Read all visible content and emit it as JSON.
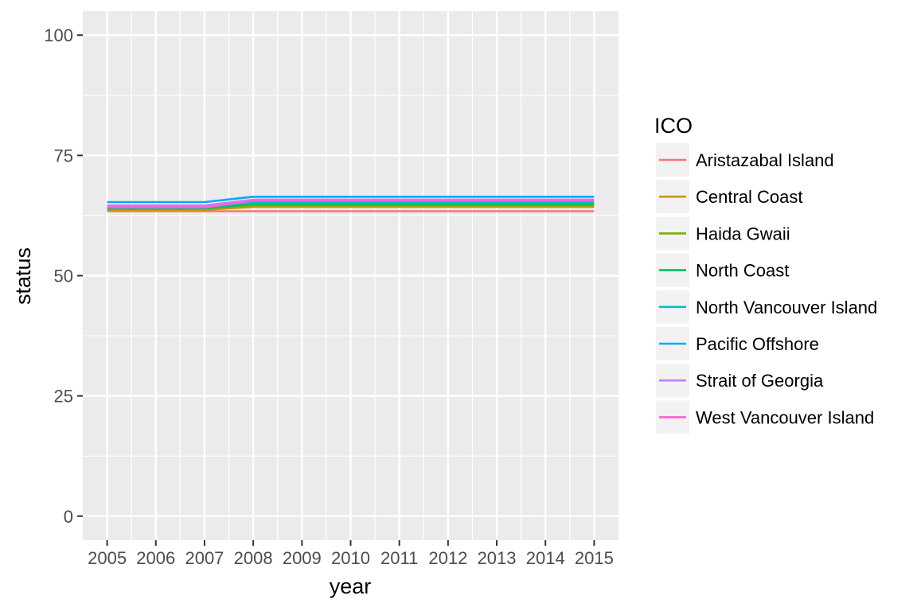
{
  "chart_data": {
    "type": "line",
    "x": [
      2005,
      2006,
      2007,
      2008,
      2009,
      2010,
      2011,
      2012,
      2013,
      2014,
      2015
    ],
    "xlabel": "year",
    "ylabel": "status",
    "ylim": [
      -5,
      105
    ],
    "yticks": [
      0,
      25,
      50,
      75,
      100
    ],
    "ytick_labels": [
      "0",
      "25",
      "50",
      "75",
      "100"
    ],
    "xtick_labels": [
      "2005",
      "2006",
      "2007",
      "2008",
      "2009",
      "2010",
      "2011",
      "2012",
      "2013",
      "2014",
      "2015"
    ],
    "grid": true,
    "legend": {
      "title": "ICO",
      "position": "right"
    },
    "series": [
      {
        "name": "Aristazabal Island",
        "color": "#F8766D",
        "values": [
          63.4,
          63.4,
          63.4,
          63.4,
          63.4,
          63.4,
          63.4,
          63.4,
          63.4,
          63.4,
          63.4
        ]
      },
      {
        "name": "Central Coast",
        "color": "#CD9600",
        "values": [
          63.7,
          63.7,
          63.7,
          64.3,
          64.3,
          64.3,
          64.3,
          64.3,
          64.3,
          64.3,
          64.3
        ]
      },
      {
        "name": "Haida Gwaii",
        "color": "#7CAE00",
        "values": [
          63.9,
          63.9,
          63.9,
          64.6,
          64.6,
          64.6,
          64.6,
          64.6,
          64.6,
          64.6,
          64.6
        ]
      },
      {
        "name": "North Coast",
        "color": "#00BE67",
        "values": [
          64.0,
          64.0,
          64.0,
          64.9,
          64.9,
          64.9,
          64.9,
          64.9,
          64.9,
          64.9,
          64.9
        ]
      },
      {
        "name": "North Vancouver Island",
        "color": "#00BFC4",
        "values": [
          64.4,
          64.4,
          64.4,
          65.3,
          65.3,
          65.3,
          65.3,
          65.3,
          65.3,
          65.3,
          65.3
        ]
      },
      {
        "name": "Pacific Offshore",
        "color": "#00A9FF",
        "values": [
          65.3,
          65.3,
          65.3,
          66.4,
          66.4,
          66.4,
          66.4,
          66.4,
          66.4,
          66.4,
          66.4
        ]
      },
      {
        "name": "Strait of Georgia",
        "color": "#C77CFF",
        "values": [
          64.6,
          64.6,
          64.6,
          65.8,
          65.8,
          65.8,
          65.8,
          65.8,
          65.8,
          65.8,
          65.8
        ]
      },
      {
        "name": "West Vancouver Island",
        "color": "#FF61CC",
        "values": [
          64.2,
          64.2,
          64.2,
          65.6,
          65.6,
          65.6,
          65.6,
          65.6,
          65.6,
          65.6,
          65.6
        ]
      }
    ]
  }
}
